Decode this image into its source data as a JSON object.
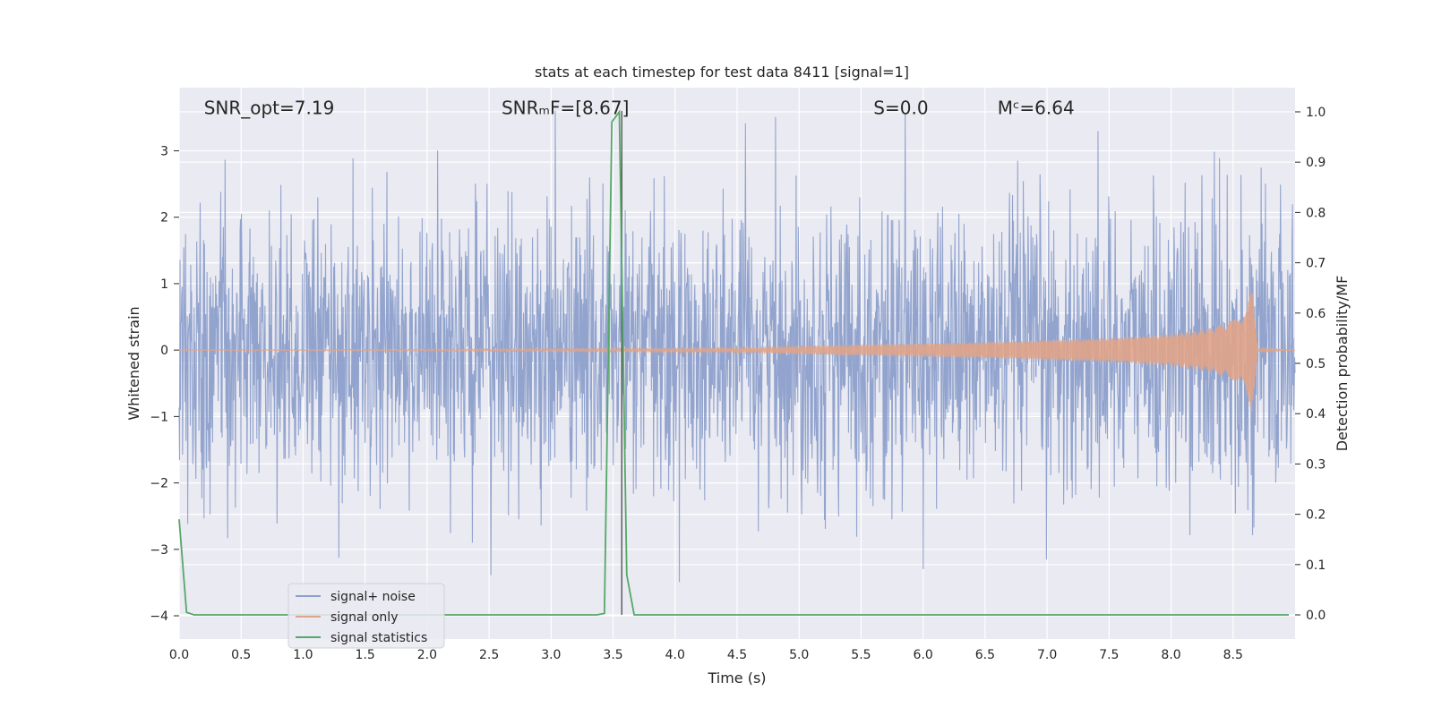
{
  "chart_data": {
    "type": "line",
    "title": "stats at each timestep for test data 8411 [signal=1]",
    "xlabel": "Time (s)",
    "ylabel": "Whitened strain",
    "y2label": "Detection probability/MF",
    "xlim": [
      0.0,
      9.0
    ],
    "ylim": [
      -4.35,
      3.95
    ],
    "y2lim": [
      -0.048,
      1.048
    ],
    "x_ticks": [
      0.0,
      0.5,
      1.0,
      1.5,
      2.0,
      2.5,
      3.0,
      3.5,
      4.0,
      4.5,
      5.0,
      5.5,
      6.0,
      6.5,
      7.0,
      7.5,
      8.0,
      8.5
    ],
    "x_tick_labels": [
      "0.0",
      "0.5",
      "1.0",
      "1.5",
      "2.0",
      "2.5",
      "3.0",
      "3.5",
      "4.0",
      "4.5",
      "5.0",
      "5.5",
      "6.0",
      "6.5",
      "7.0",
      "7.5",
      "8.0",
      "8.5"
    ],
    "y_ticks": [
      -4,
      -3,
      -2,
      -1,
      0,
      1,
      2,
      3
    ],
    "y_tick_labels": [
      "−4",
      "−3",
      "−2",
      "−1",
      "0",
      "1",
      "2",
      "3"
    ],
    "y2_ticks": [
      0.0,
      0.1,
      0.2,
      0.3,
      0.4,
      0.5,
      0.6,
      0.7,
      0.8,
      0.9,
      1.0
    ],
    "y2_tick_labels": [
      "0.0",
      "0.1",
      "0.2",
      "0.3",
      "0.4",
      "0.5",
      "0.6",
      "0.7",
      "0.8",
      "0.9",
      "1.0"
    ],
    "grid": true,
    "legend_position": "lower-left",
    "annotations": [
      {
        "text": "SNR_opt=7.19",
        "x": 0.2,
        "y": 3.65
      },
      {
        "text": "SNRₘF=[8.67]",
        "x": 2.6,
        "y": 3.65
      },
      {
        "text": "S=0.0",
        "x": 5.6,
        "y": 3.65
      },
      {
        "text": "Mᶜ=6.64",
        "x": 6.6,
        "y": 3.65
      }
    ],
    "series": [
      {
        "name": "signal+ noise",
        "color": "#8da0cb",
        "axis": "left",
        "x_range": [
          0.0,
          9.0
        ],
        "amplitude_envelope": [
          -3.6,
          3.6
        ]
      },
      {
        "name": "signal only",
        "color": "#e0a48a",
        "axis": "left",
        "envelope_x": [
          0.0,
          4.5,
          5.0,
          5.5,
          6.0,
          6.5,
          7.0,
          7.5,
          8.0,
          8.3,
          8.5,
          8.6,
          8.65,
          8.7,
          9.0
        ],
        "envelope_y": [
          0.0,
          0.03,
          0.06,
          0.08,
          0.1,
          0.12,
          0.15,
          0.18,
          0.24,
          0.32,
          0.45,
          0.6,
          0.95,
          0.02,
          0.0
        ]
      },
      {
        "name": "signal statistics",
        "color": "#55a868",
        "axis": "right",
        "x": [
          0.0,
          0.06,
          0.12,
          3.37,
          3.43,
          3.49,
          3.55,
          3.61,
          3.67,
          8.95
        ],
        "y": [
          0.19,
          0.005,
          0.0,
          0.0,
          0.003,
          0.98,
          1.0,
          0.08,
          0.0,
          0.0
        ]
      }
    ],
    "vertical_line": {
      "x": 3.57,
      "color": "#555555"
    }
  }
}
